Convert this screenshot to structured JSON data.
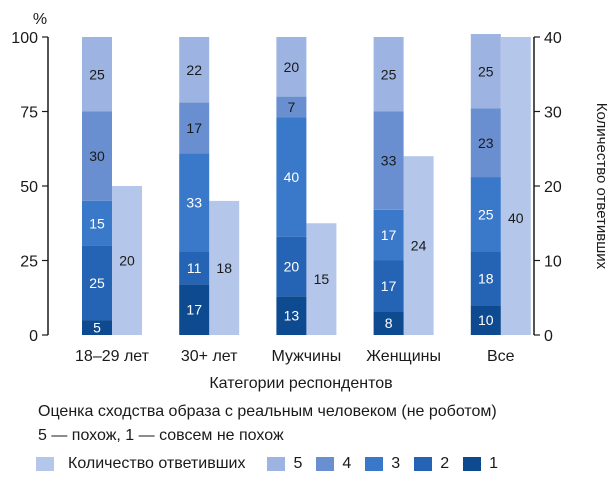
{
  "chart_data": {
    "type": "bar",
    "categories": [
      "18–29 лет",
      "30+ лет",
      "Мужчины",
      "Женщины",
      "Все"
    ],
    "stacked_series": [
      {
        "name": "1",
        "color": "#0e4a8f",
        "values": [
          5,
          17,
          13,
          8,
          10
        ]
      },
      {
        "name": "2",
        "color": "#2563b4",
        "values": [
          25,
          11,
          20,
          17,
          18
        ]
      },
      {
        "name": "3",
        "color": "#3a78c9",
        "values": [
          15,
          33,
          40,
          17,
          25
        ]
      },
      {
        "name": "4",
        "color": "#6a8fd0",
        "values": [
          30,
          17,
          7,
          33,
          23
        ]
      },
      {
        "name": "5",
        "color": "#9db4e2",
        "values": [
          25,
          22,
          20,
          25,
          25
        ]
      }
    ],
    "count_series": {
      "name": "Количество ответивших",
      "color": "#b4c6ea",
      "values": [
        20,
        18,
        15,
        24,
        40
      ]
    },
    "left_axis": {
      "unit_label": "%",
      "ticks": [
        0,
        25,
        50,
        75,
        100
      ],
      "range": [
        0,
        100
      ]
    },
    "right_axis": {
      "label": "Количество ответивших",
      "ticks": [
        0,
        10,
        20,
        30,
        40
      ],
      "range": [
        0,
        40
      ]
    },
    "xlabel": "Категории респондентов"
  },
  "caption": {
    "line1": "Оценка сходства образа с реальным человеком (не роботом)",
    "line2": "5 — похож, 1 — совсем не похож"
  },
  "legend": {
    "count_label": "Количество ответивших",
    "items": [
      {
        "label": "5",
        "color": "#9db4e2"
      },
      {
        "label": "4",
        "color": "#6a8fd0"
      },
      {
        "label": "3",
        "color": "#3a78c9"
      },
      {
        "label": "2",
        "color": "#2563b4"
      },
      {
        "label": "1",
        "color": "#0e4a8f"
      }
    ]
  }
}
